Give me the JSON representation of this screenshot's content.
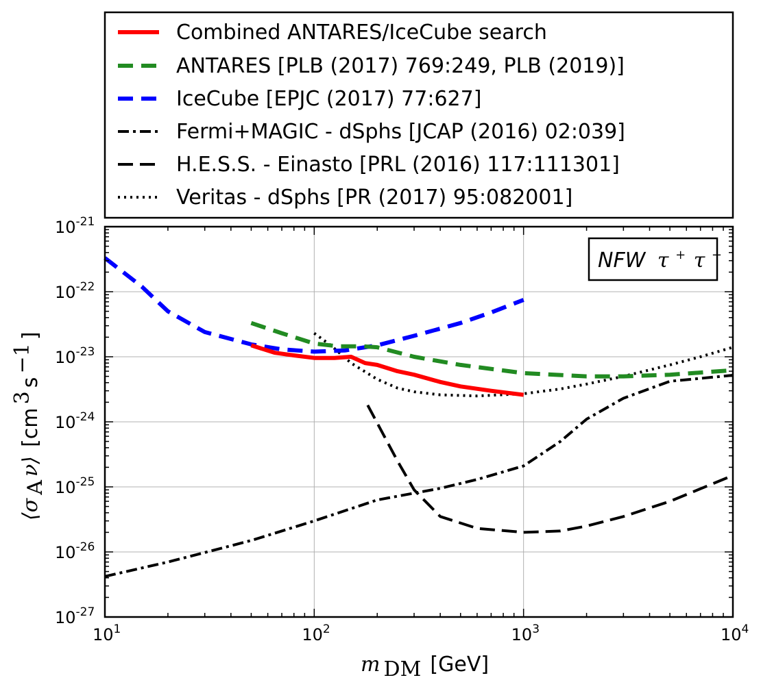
{
  "chart_data": {
    "type": "line",
    "title": "",
    "xscale": "log",
    "yscale": "log",
    "xlim": [
      10,
      10000
    ],
    "ylim": [
      1e-27,
      1e-21
    ],
    "grid": true,
    "legend_position": "top",
    "xlabel": {
      "math": "m",
      "sub": "DM",
      "unit": "[GeV]"
    },
    "ylabel": {
      "math": "⟨σ",
      "sub": "A",
      "math2": "ν⟩",
      "unit_open": "[cm",
      "sup1": "3",
      "mid": "s",
      "sup2": "−1",
      "unit_close": "]"
    },
    "x_ticks": [
      {
        "base": "10",
        "exp": "1",
        "value": 10
      },
      {
        "base": "10",
        "exp": "2",
        "value": 100
      },
      {
        "base": "10",
        "exp": "3",
        "value": 1000
      },
      {
        "base": "10",
        "exp": "4",
        "value": 10000
      }
    ],
    "y_ticks": [
      {
        "base": "10",
        "exp": "-27",
        "value": 1e-27
      },
      {
        "base": "10",
        "exp": "-26",
        "value": 1e-26
      },
      {
        "base": "10",
        "exp": "-25",
        "value": 1e-25
      },
      {
        "base": "10",
        "exp": "-24",
        "value": 1e-24
      },
      {
        "base": "10",
        "exp": "-23",
        "value": 1e-23
      },
      {
        "base": "10",
        "exp": "-22",
        "value": 1e-22
      },
      {
        "base": "10",
        "exp": "-21",
        "value": 1e-21
      }
    ],
    "annotation": {
      "text": "NFW",
      "math": "τ",
      "sup1": "+",
      "math2": "τ",
      "sup2": "−"
    },
    "series": [
      {
        "name": "Combined ANTARES/IceCube search",
        "color": "#ff0000",
        "style": "solid",
        "width": 6,
        "x": [
          50,
          65,
          80,
          100,
          125,
          150,
          175,
          200,
          250,
          300,
          400,
          500,
          700,
          1000
        ],
        "y": [
          1.5e-23,
          1.15e-23,
          1.05e-23,
          9.6e-24,
          9.6e-24,
          1e-23,
          8e-24,
          7.5e-24,
          6e-24,
          5.3e-24,
          4.1e-24,
          3.5e-24,
          3e-24,
          2.6e-24
        ]
      },
      {
        "name": "ANTARES [PLB (2017) 769:249, PLB (2019)]",
        "color": "#228b22",
        "style": "dashed",
        "width": 6,
        "x": [
          50,
          70,
          100,
          130,
          170,
          200,
          300,
          500,
          1000,
          2000,
          3000,
          5000,
          10000
        ],
        "y": [
          3.3e-23,
          2.3e-23,
          1.6e-23,
          1.45e-23,
          1.45e-23,
          1.4e-23,
          1e-23,
          7.5e-24,
          5.6e-24,
          5e-24,
          5e-24,
          5.3e-24,
          6.2e-24
        ]
      },
      {
        "name": "IceCube [EPJC (2017) 77:627]",
        "color": "#0000ff",
        "style": "dashed",
        "width": 6,
        "x": [
          10,
          15,
          20,
          30,
          50,
          70,
          100,
          140,
          200,
          300,
          500,
          700,
          1000
        ],
        "y": [
          3.3e-22,
          1.2e-22,
          5e-23,
          2.4e-23,
          1.55e-23,
          1.3e-23,
          1.2e-23,
          1.25e-23,
          1.5e-23,
          2.1e-23,
          3.3e-23,
          4.8e-23,
          7.5e-23
        ]
      },
      {
        "name": "Fermi+MAGIC - dSphs [JCAP (2016) 02:039]",
        "color": "#000000",
        "style": "dashdot",
        "width": 4,
        "x": [
          10,
          20,
          50,
          100,
          200,
          400,
          600,
          1000,
          1500,
          2000,
          3000,
          5000,
          10000
        ],
        "y": [
          4.2e-27,
          7e-27,
          1.5e-26,
          3e-26,
          6.3e-26,
          9.5e-26,
          1.3e-25,
          2.1e-25,
          5e-25,
          1.1e-24,
          2.3e-24,
          4.2e-24,
          5.2e-24
        ]
      },
      {
        "name": "H.E.S.S. - Einasto [PRL (2016) 117:111301]",
        "color": "#000000",
        "style": "dashed",
        "width": 4,
        "x": [
          180,
          250,
          300,
          400,
          600,
          1000,
          1500,
          2000,
          3000,
          5000,
          10000
        ],
        "y": [
          1.8e-24,
          2.5e-25,
          9e-26,
          3.5e-26,
          2.3e-26,
          2e-26,
          2.1e-26,
          2.5e-26,
          3.5e-26,
          6e-26,
          1.5e-25
        ]
      },
      {
        "name": "Veritas - dSphs [PR (2017) 95:082001]",
        "color": "#000000",
        "style": "dotted",
        "width": 4,
        "x": [
          100,
          120,
          150,
          200,
          250,
          300,
          400,
          600,
          1000,
          1500,
          2000,
          3000,
          5000,
          7000,
          10000
        ],
        "y": [
          2.3e-23,
          1.5e-23,
          8e-24,
          4.5e-24,
          3.3e-24,
          2.9e-24,
          2.6e-24,
          2.5e-24,
          2.7e-24,
          3.2e-24,
          3.8e-24,
          5e-24,
          7.5e-24,
          1e-23,
          1.4e-23
        ]
      }
    ]
  }
}
